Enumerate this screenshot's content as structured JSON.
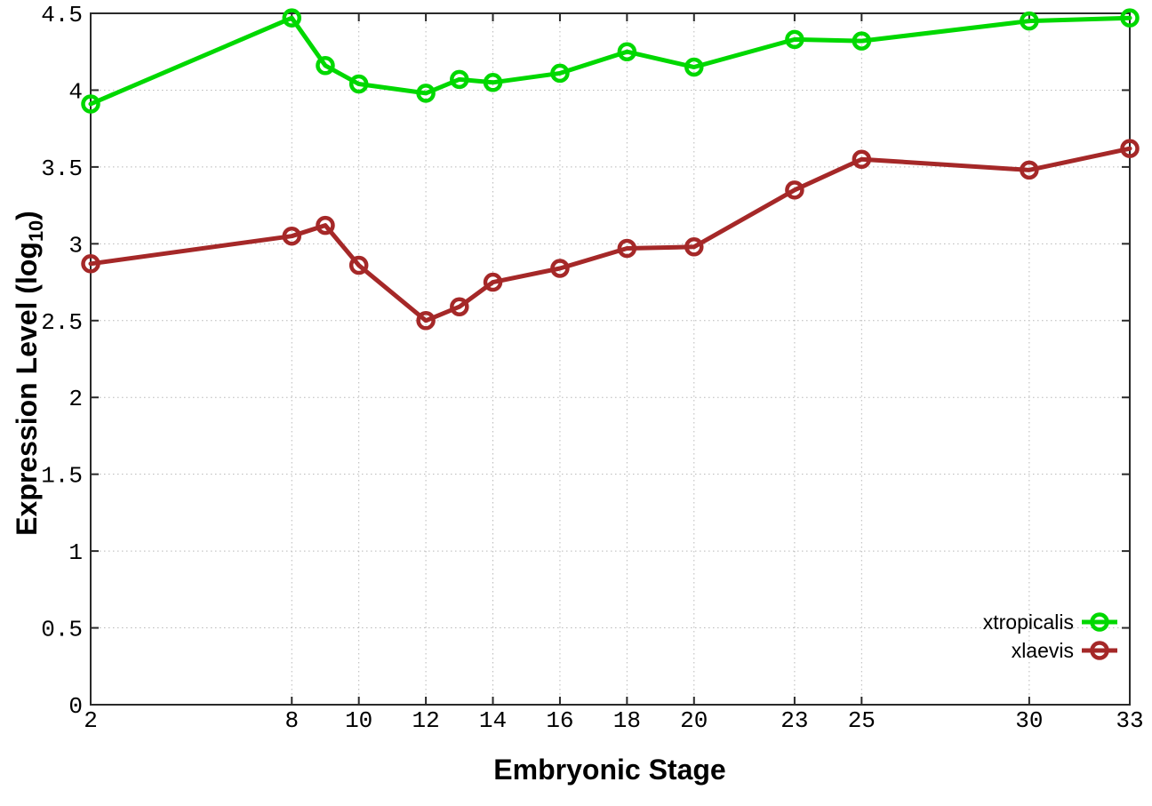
{
  "chart_data": {
    "type": "line",
    "title": "",
    "xlabel": "Embryonic Stage",
    "ylabel": "Expression Level (log10)",
    "ylabel_main": "Expression Level (log",
    "ylabel_sub": "10",
    "ylabel_close": ")",
    "x": [
      2,
      8,
      9,
      10,
      12,
      13,
      14,
      16,
      18,
      20,
      23,
      25,
      30,
      33
    ],
    "xlim": [
      2,
      33
    ],
    "ylim": [
      0,
      4.5
    ],
    "xticks": [
      2,
      8,
      10,
      12,
      14,
      16,
      18,
      20,
      23,
      25,
      30,
      33
    ],
    "xtick_labels": [
      "2",
      "8",
      "10",
      "12",
      "14",
      "16",
      "18",
      "20",
      "23",
      "25",
      "30",
      "33"
    ],
    "yticks": [
      0,
      0.5,
      1,
      1.5,
      2,
      2.5,
      3,
      3.5,
      4,
      4.5
    ],
    "ytick_labels": [
      "0",
      "0.5",
      "1",
      "1.5",
      "2",
      "2.5",
      "3",
      "3.5",
      "4",
      "4.5"
    ],
    "grid": true,
    "grid_style": "dotted",
    "legend_position": "inside-bottom-right",
    "series": [
      {
        "name": "xtropicalis",
        "color": "#00d800",
        "marker": "open-circle",
        "values": [
          3.91,
          4.47,
          4.16,
          4.04,
          3.98,
          4.07,
          4.05,
          4.11,
          4.25,
          4.15,
          4.33,
          4.32,
          4.45,
          4.47
        ]
      },
      {
        "name": "xlaevis",
        "color": "#a52828",
        "marker": "open-circle",
        "values": [
          2.87,
          3.05,
          3.12,
          2.86,
          2.5,
          2.59,
          2.75,
          2.84,
          2.97,
          2.98,
          3.35,
          3.55,
          3.48,
          3.62
        ]
      }
    ]
  },
  "colors": {
    "background": "#ffffff",
    "frame": "#2a2a2a",
    "grid": "#b8b8b8",
    "text": "#000000"
  }
}
